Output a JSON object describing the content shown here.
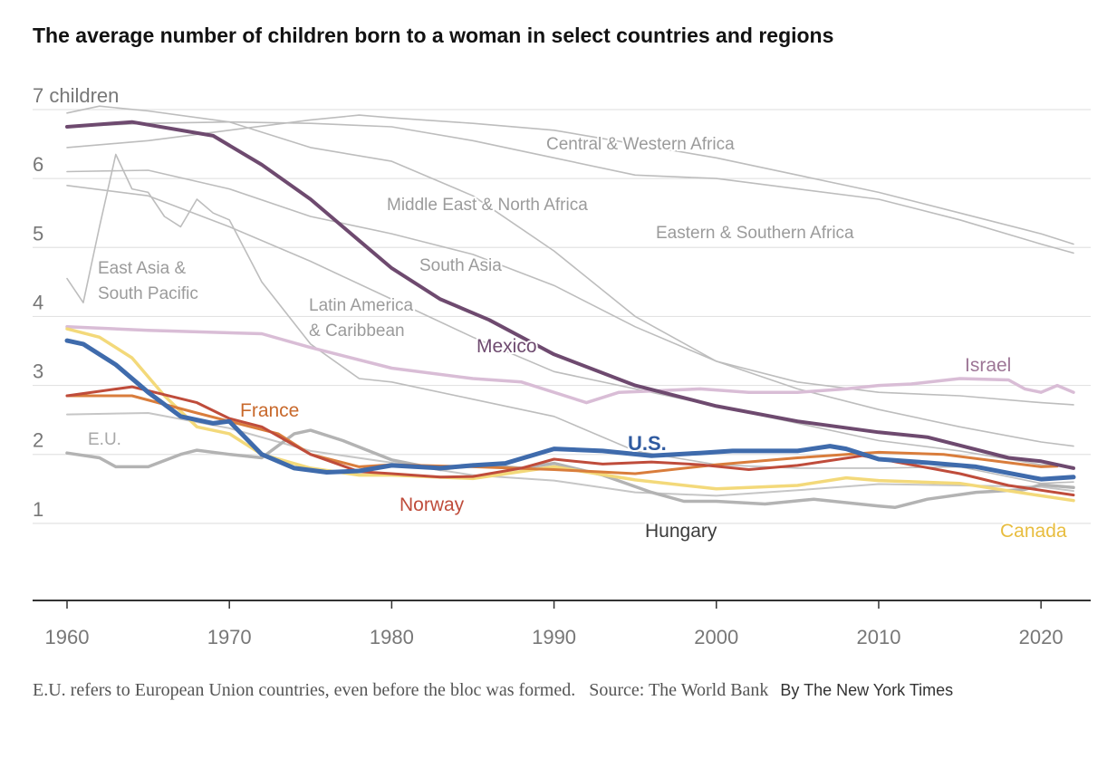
{
  "title": "The average number of children born to a woman in select countries and regions",
  "footnote": {
    "note": "E.U. refers to European Union countries, even before the bloc was formed.",
    "source": "Source: The World Bank",
    "byline": "By The New York Times"
  },
  "chart_data": {
    "type": "line",
    "title": "The average number of children born to a woman in select countries and regions",
    "xlabel": "",
    "ylabel": "children",
    "xlim": [
      1960,
      2022
    ],
    "ylim": [
      0,
      7
    ],
    "grid": true,
    "y_unit_label": "7 children",
    "x_ticks": [
      1960,
      1970,
      1980,
      1990,
      2000,
      2010,
      2020
    ],
    "y_ticks": [
      1,
      2,
      3,
      4,
      5,
      6,
      7
    ],
    "series": [
      {
        "name": "Central & Western Africa",
        "color": "#bdbdbd",
        "label_color": "#9b9b9b",
        "x": [
          1960,
          1965,
          1970,
          1975,
          1978,
          1980,
          1985,
          1990,
          1995,
          2000,
          2005,
          2010,
          2015,
          2020,
          2022
        ],
        "y": [
          6.45,
          6.55,
          6.7,
          6.85,
          6.92,
          6.88,
          6.8,
          6.7,
          6.5,
          6.3,
          6.05,
          5.8,
          5.5,
          5.2,
          5.05
        ]
      },
      {
        "name": "Eastern & Southern Africa",
        "color": "#bdbdbd",
        "label_color": "#9b9b9b",
        "x": [
          1960,
          1965,
          1970,
          1975,
          1980,
          1985,
          1990,
          1995,
          2000,
          2005,
          2010,
          2015,
          2020,
          2022
        ],
        "y": [
          6.75,
          6.8,
          6.82,
          6.8,
          6.75,
          6.55,
          6.3,
          6.05,
          6.0,
          5.85,
          5.7,
          5.4,
          5.05,
          4.92
        ]
      },
      {
        "name": "Middle East & North Africa",
        "color": "#bdbdbd",
        "label_color": "#9b9b9b",
        "x": [
          1960,
          1962,
          1965,
          1970,
          1975,
          1980,
          1985,
          1990,
          1995,
          2000,
          2005,
          2010,
          2015,
          2020,
          2022
        ],
        "y": [
          6.95,
          7.05,
          6.98,
          6.82,
          6.45,
          6.25,
          5.75,
          4.95,
          4.0,
          3.35,
          3.05,
          2.9,
          2.85,
          2.75,
          2.72
        ]
      },
      {
        "name": "South Asia",
        "color": "#bdbdbd",
        "label_color": "#9b9b9b",
        "x": [
          1960,
          1965,
          1970,
          1975,
          1980,
          1985,
          1990,
          1995,
          2000,
          2005,
          2010,
          2015,
          2020,
          2022
        ],
        "y": [
          6.1,
          6.12,
          5.85,
          5.45,
          5.2,
          4.9,
          4.45,
          3.85,
          3.35,
          2.95,
          2.65,
          2.4,
          2.18,
          2.12
        ]
      },
      {
        "name": "East Asia & South Pacific",
        "color": "#bdbdbd",
        "label_color": "#9b9b9b",
        "x": [
          1960,
          1961,
          1962,
          1963,
          1964,
          1965,
          1966,
          1967,
          1968,
          1969,
          1970,
          1972,
          1975,
          1978,
          1980,
          1985,
          1990,
          1995,
          2000,
          2005,
          2010,
          2015,
          2020,
          2022
        ],
        "y": [
          4.55,
          4.2,
          5.3,
          6.35,
          5.85,
          5.8,
          5.45,
          5.3,
          5.7,
          5.5,
          5.4,
          4.5,
          3.6,
          3.1,
          3.05,
          2.8,
          2.55,
          2.05,
          1.85,
          1.8,
          1.8,
          1.82,
          1.58,
          1.6
        ]
      },
      {
        "name": "Latin America & Caribbean",
        "color": "#bdbdbd",
        "label_color": "#9b9b9b",
        "x": [
          1960,
          1965,
          1970,
          1975,
          1980,
          1985,
          1990,
          1995,
          2000,
          2005,
          2010,
          2015,
          2020,
          2022
        ],
        "y": [
          5.9,
          5.75,
          5.3,
          4.8,
          4.25,
          3.7,
          3.2,
          2.95,
          2.7,
          2.45,
          2.2,
          2.05,
          1.85,
          1.82
        ]
      },
      {
        "name": "Mexico",
        "color": "#6e4a6f",
        "label_color": "#6e4a6f",
        "emphasis": true,
        "x": [
          1960,
          1964,
          1969,
          1972,
          1975,
          1978,
          1980,
          1983,
          1986,
          1990,
          1995,
          2000,
          2005,
          2010,
          2013,
          2018,
          2020,
          2022
        ],
        "y": [
          6.75,
          6.82,
          6.62,
          6.2,
          5.7,
          5.1,
          4.7,
          4.25,
          3.95,
          3.45,
          3.0,
          2.7,
          2.48,
          2.32,
          2.25,
          1.95,
          1.9,
          1.8
        ]
      },
      {
        "name": "Israel",
        "color": "#d9bdd6",
        "label_color": "#9d7696",
        "x": [
          1960,
          1965,
          1972,
          1975,
          1980,
          1985,
          1988,
          1992,
          1994,
          1996,
          1999,
          2002,
          2005,
          2008,
          2010,
          2012,
          2015,
          2018,
          2019,
          2020,
          2021,
          2022
        ],
        "y": [
          3.85,
          3.8,
          3.75,
          3.55,
          3.25,
          3.1,
          3.05,
          2.75,
          2.9,
          2.92,
          2.95,
          2.9,
          2.9,
          2.95,
          3.0,
          3.02,
          3.1,
          3.08,
          2.95,
          2.9,
          3.0,
          2.9
        ]
      },
      {
        "name": "U.S.",
        "color": "#3f6bac",
        "label_color": "#2f5aa0",
        "emphasis": true,
        "x": [
          1960,
          1961,
          1963,
          1965,
          1967,
          1969,
          1970,
          1972,
          1974,
          1976,
          1978,
          1980,
          1983,
          1985,
          1987,
          1990,
          1993,
          1996,
          1999,
          2001,
          2003,
          2005,
          2007,
          2008,
          2010,
          2013,
          2016,
          2018,
          2020,
          2022
        ],
        "y": [
          3.65,
          3.6,
          3.3,
          2.9,
          2.55,
          2.45,
          2.48,
          2.0,
          1.8,
          1.74,
          1.76,
          1.84,
          1.8,
          1.84,
          1.87,
          2.08,
          2.05,
          1.98,
          2.02,
          2.05,
          2.05,
          2.05,
          2.12,
          2.08,
          1.93,
          1.88,
          1.82,
          1.73,
          1.64,
          1.67
        ]
      },
      {
        "name": "France",
        "color": "#d97d3c",
        "label_color": "#c8692c",
        "x": [
          1960,
          1964,
          1968,
          1970,
          1973,
          1975,
          1978,
          1980,
          1985,
          1990,
          1995,
          2000,
          2005,
          2008,
          2010,
          2014,
          2018,
          2020,
          2021
        ],
        "y": [
          2.85,
          2.85,
          2.6,
          2.48,
          2.3,
          2.0,
          1.82,
          1.85,
          1.82,
          1.78,
          1.72,
          1.85,
          1.95,
          2.0,
          2.03,
          2.0,
          1.88,
          1.82,
          1.83
        ]
      },
      {
        "name": "Norway",
        "color": "#bf4c3b",
        "label_color": "#bf4c3b",
        "x": [
          1960,
          1964,
          1968,
          1970,
          1972,
          1975,
          1978,
          1980,
          1983,
          1985,
          1988,
          1990,
          1993,
          1996,
          1999,
          2002,
          2005,
          2009,
          2012,
          2015,
          2018,
          2020,
          2022
        ],
        "y": [
          2.85,
          2.98,
          2.75,
          2.52,
          2.4,
          2.0,
          1.75,
          1.72,
          1.67,
          1.68,
          1.8,
          1.93,
          1.86,
          1.89,
          1.85,
          1.78,
          1.84,
          1.98,
          1.85,
          1.72,
          1.55,
          1.48,
          1.41
        ]
      },
      {
        "name": "Canada",
        "color": "#f3d97a",
        "label_color": "#e8bd3f",
        "x": [
          1960,
          1962,
          1964,
          1966,
          1968,
          1970,
          1972,
          1975,
          1978,
          1980,
          1985,
          1990,
          1995,
          2000,
          2005,
          2008,
          2010,
          2015,
          2020,
          2022
        ],
        "y": [
          3.82,
          3.7,
          3.4,
          2.85,
          2.4,
          2.3,
          2.0,
          1.8,
          1.7,
          1.7,
          1.65,
          1.82,
          1.63,
          1.5,
          1.55,
          1.66,
          1.62,
          1.58,
          1.4,
          1.33
        ]
      },
      {
        "name": "E.U.",
        "color": "#c6c6c6",
        "label_color": "#a8a8a8",
        "x": [
          1960,
          1965,
          1970,
          1975,
          1980,
          1985,
          1990,
          1995,
          2000,
          2005,
          2010,
          2015,
          2020,
          2022
        ],
        "y": [
          2.58,
          2.6,
          2.38,
          2.05,
          1.88,
          1.7,
          1.62,
          1.45,
          1.4,
          1.48,
          1.57,
          1.55,
          1.53,
          1.47
        ]
      },
      {
        "name": "Hungary",
        "color": "#b3b3b3",
        "label_color": "#3d3d3d",
        "x": [
          1960,
          1962,
          1963,
          1965,
          1967,
          1968,
          1970,
          1972,
          1974,
          1975,
          1977,
          1980,
          1983,
          1985,
          1988,
          1990,
          1993,
          1996,
          1998,
          2000,
          2003,
          2006,
          2010,
          2011,
          2013,
          2016,
          2019,
          2020,
          2022
        ],
        "y": [
          2.02,
          1.95,
          1.82,
          1.82,
          2.0,
          2.06,
          2.0,
          1.95,
          2.3,
          2.35,
          2.2,
          1.92,
          1.78,
          1.85,
          1.8,
          1.87,
          1.7,
          1.45,
          1.32,
          1.32,
          1.28,
          1.35,
          1.25,
          1.23,
          1.35,
          1.45,
          1.49,
          1.56,
          1.52
        ]
      }
    ]
  }
}
